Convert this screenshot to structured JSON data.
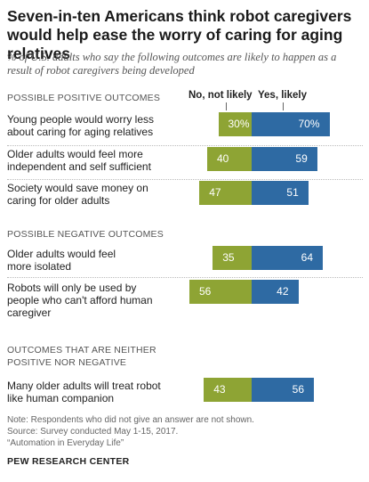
{
  "title": "Seven-in-ten Americans think robot caregivers would help ease the worry of caring for aging relatives",
  "subtitle": "% of U.S. adults who say the following outcomes are likely to happen as a result of robot caregivers being developed",
  "legend": {
    "neg": "No, not likely",
    "pos": "Yes, likely"
  },
  "colors": {
    "neg": "#8ea434",
    "pos": "#2e6aa3"
  },
  "sections": [
    {
      "label": "POSSIBLE POSITIVE OUTCOMES"
    },
    {
      "label": "POSSIBLE NEGATIVE OUTCOMES"
    },
    {
      "label": "OUTCOMES THAT ARE NEITHER POSITIVE NOR NEGATIVE"
    }
  ],
  "chart_data": {
    "type": "bar",
    "orientation": "diverging-horizontal",
    "categories": [
      "Young people would worry less about caring for aging relatives",
      "Older adults would feel more independent and self sufficient",
      "Society would save money on caring for older adults",
      "Older adults would feel more isolated",
      "Robots will only be used by people who can't afford human caregiver",
      "Many older adults will treat robot like human companion"
    ],
    "series": [
      {
        "name": "No, not likely",
        "values": [
          30,
          40,
          47,
          35,
          56,
          43
        ],
        "labels": [
          "30%",
          "40",
          "47",
          "35",
          "56",
          "43"
        ]
      },
      {
        "name": "Yes, likely",
        "values": [
          70,
          59,
          51,
          64,
          42,
          56
        ],
        "labels": [
          "70%",
          "59",
          "51",
          "64",
          "42",
          "56"
        ]
      }
    ]
  },
  "notes": [
    "Note: Respondents who did not give an answer are not shown.",
    "Source: Survey conducted May 1-15, 2017.",
    "“Automation in Everyday Life”"
  ],
  "source_org": "PEW RESEARCH CENTER"
}
